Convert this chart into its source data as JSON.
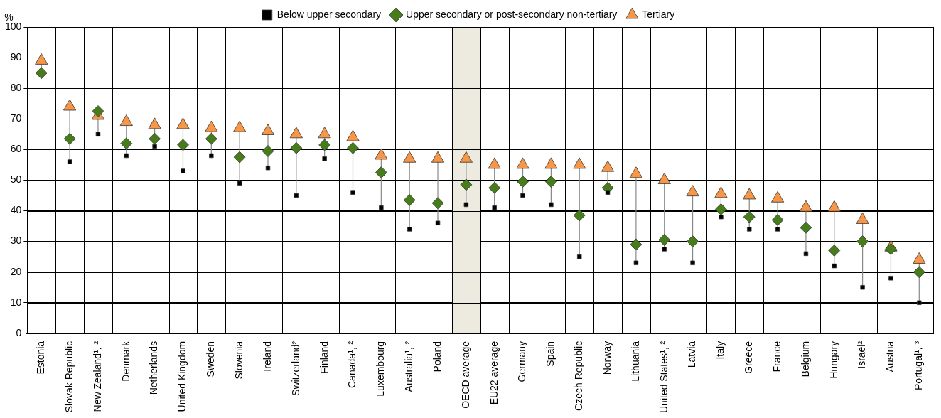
{
  "chart_data": {
    "type": "scatter",
    "ylabel": "%",
    "categories": [
      "Estonia",
      "Slovak Republic",
      "New Zealand¹, ²",
      "Denmark",
      "Netherlands",
      "United Kingdom",
      "Sweden",
      "Slovenia",
      "Ireland",
      "Switzerland²",
      "Finland",
      "Canada¹, ²",
      "Luxembourg",
      "Australia¹, ²",
      "Poland",
      "OECD average",
      "EU22 average",
      "Germany",
      "Spain",
      "Czech Republic",
      "Norway",
      "Lithuania",
      "United States¹, ²",
      "Latvia",
      "Italy",
      "Greece",
      "France",
      "Belgium",
      "Hungary",
      "Israel²",
      "Austria",
      "Portugal¹, ³"
    ],
    "series": [
      {
        "name": "Below upper secondary",
        "color": "#000000",
        "marker": "square",
        "values": [
          null,
          56,
          65,
          58,
          61,
          53,
          58,
          49,
          54,
          45,
          57,
          46,
          41,
          34,
          36,
          42,
          41,
          45,
          42,
          25,
          46,
          23,
          27.5,
          23,
          38,
          34,
          34,
          26,
          22,
          15,
          18,
          10
        ]
      },
      {
        "name": "Upper secondary or post-secondary non-tertiary",
        "color": "#467c1a",
        "marker": "diamond",
        "values": [
          85,
          63.5,
          72.5,
          62,
          63.5,
          61.5,
          63.5,
          57.5,
          59.5,
          60.5,
          61.5,
          60.5,
          52.5,
          43.5,
          42.5,
          48.5,
          47.5,
          49.5,
          49.5,
          38.5,
          47.5,
          29,
          30.5,
          30,
          40.5,
          38,
          37,
          34.5,
          27,
          30,
          27.5,
          20
        ]
      },
      {
        "name": "Tertiary",
        "color": "#f79646",
        "marker": "triangle",
        "values": [
          89,
          74,
          71,
          69,
          68,
          68,
          67,
          67,
          66,
          65,
          65,
          64,
          58,
          57,
          57,
          57,
          55,
          55,
          55,
          55,
          54,
          52,
          50,
          46,
          45.5,
          45,
          44,
          41,
          41,
          37,
          28,
          24
        ]
      }
    ],
    "ylim": [
      0,
      100
    ],
    "yticks": [
      0,
      10,
      20,
      30,
      40,
      50,
      60,
      70,
      80,
      90,
      100
    ],
    "grid": true,
    "legend": "top",
    "bands": [
      {
        "axis": "x",
        "from": "OECD average",
        "to": "OECD average",
        "color": "#edebe0"
      }
    ]
  }
}
